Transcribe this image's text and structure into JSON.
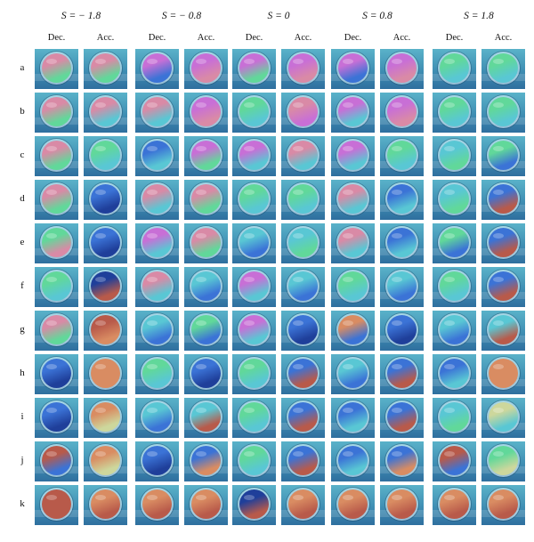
{
  "groups": [
    {
      "title": "S = − 1.8",
      "columns": [
        "Dec.",
        "Acc."
      ]
    },
    {
      "title": "S = − 0.8",
      "columns": [
        "Dec.",
        "Acc."
      ]
    },
    {
      "title": "S = 0",
      "columns": [
        "Dec.",
        "Acc."
      ]
    },
    {
      "title": "S = 0.8",
      "columns": [
        "Dec.",
        "Acc."
      ]
    },
    {
      "title": "S = 1.8",
      "columns": [
        "Dec.",
        "Acc."
      ]
    }
  ],
  "rows": [
    "a",
    "b",
    "c",
    "d",
    "e",
    "f",
    "g",
    "h",
    "i",
    "j",
    "k"
  ],
  "palette": {
    "M": "#c86fd6",
    "P": "#d98aa6",
    "G": "#61d89a",
    "C": "#59c7d4",
    "B": "#3b73d6",
    "N": "#1f3f9a",
    "R": "#b85a4a",
    "O": "#d98c62",
    "Y": "#cdd79c"
  },
  "tile_colors": [
    [
      "PG",
      "PG",
      "MB",
      "MP",
      "MG",
      "MP",
      "MB",
      "MP",
      "GC",
      "GC"
    ],
    [
      "PG",
      "PC",
      "PC",
      "MP",
      "GC",
      "PM",
      "MC",
      "MP",
      "GC",
      "GC"
    ],
    [
      "PG",
      "GC",
      "BC",
      "MG",
      "MC",
      "PC",
      "MC",
      "GC",
      "CG",
      "GB"
    ],
    [
      "PG",
      "BN",
      "PC",
      "PG",
      "GC",
      "GC",
      "PC",
      "BC",
      "CG",
      "BR"
    ],
    [
      "GP",
      "BN",
      "MC",
      "PG",
      "CB",
      "CG",
      "PC",
      "BC",
      "GB",
      "BR"
    ],
    [
      "GC",
      "NR",
      "PC",
      "CB",
      "MC",
      "CB",
      "GC",
      "CB",
      "GC",
      "BR"
    ],
    [
      "PG",
      "RO",
      "CB",
      "GB",
      "MC",
      "BN",
      "OB",
      "BN",
      "CB",
      "CR"
    ],
    [
      "BN",
      "OO",
      "GC",
      "BN",
      "GC",
      "BR",
      "CB",
      "BR",
      "BC",
      "OO"
    ],
    [
      "BN",
      "OY",
      "CB",
      "CR",
      "GC",
      "BR",
      "BC",
      "BR",
      "CG",
      "YC"
    ],
    [
      "RB",
      "OY",
      "BN",
      "BO",
      "GC",
      "BR",
      "BC",
      "BO",
      "RB",
      "GY"
    ],
    [
      "RR",
      "OR",
      "OR",
      "OR",
      "NR",
      "OR",
      "OR",
      "OR",
      "OR",
      "OR"
    ]
  ]
}
